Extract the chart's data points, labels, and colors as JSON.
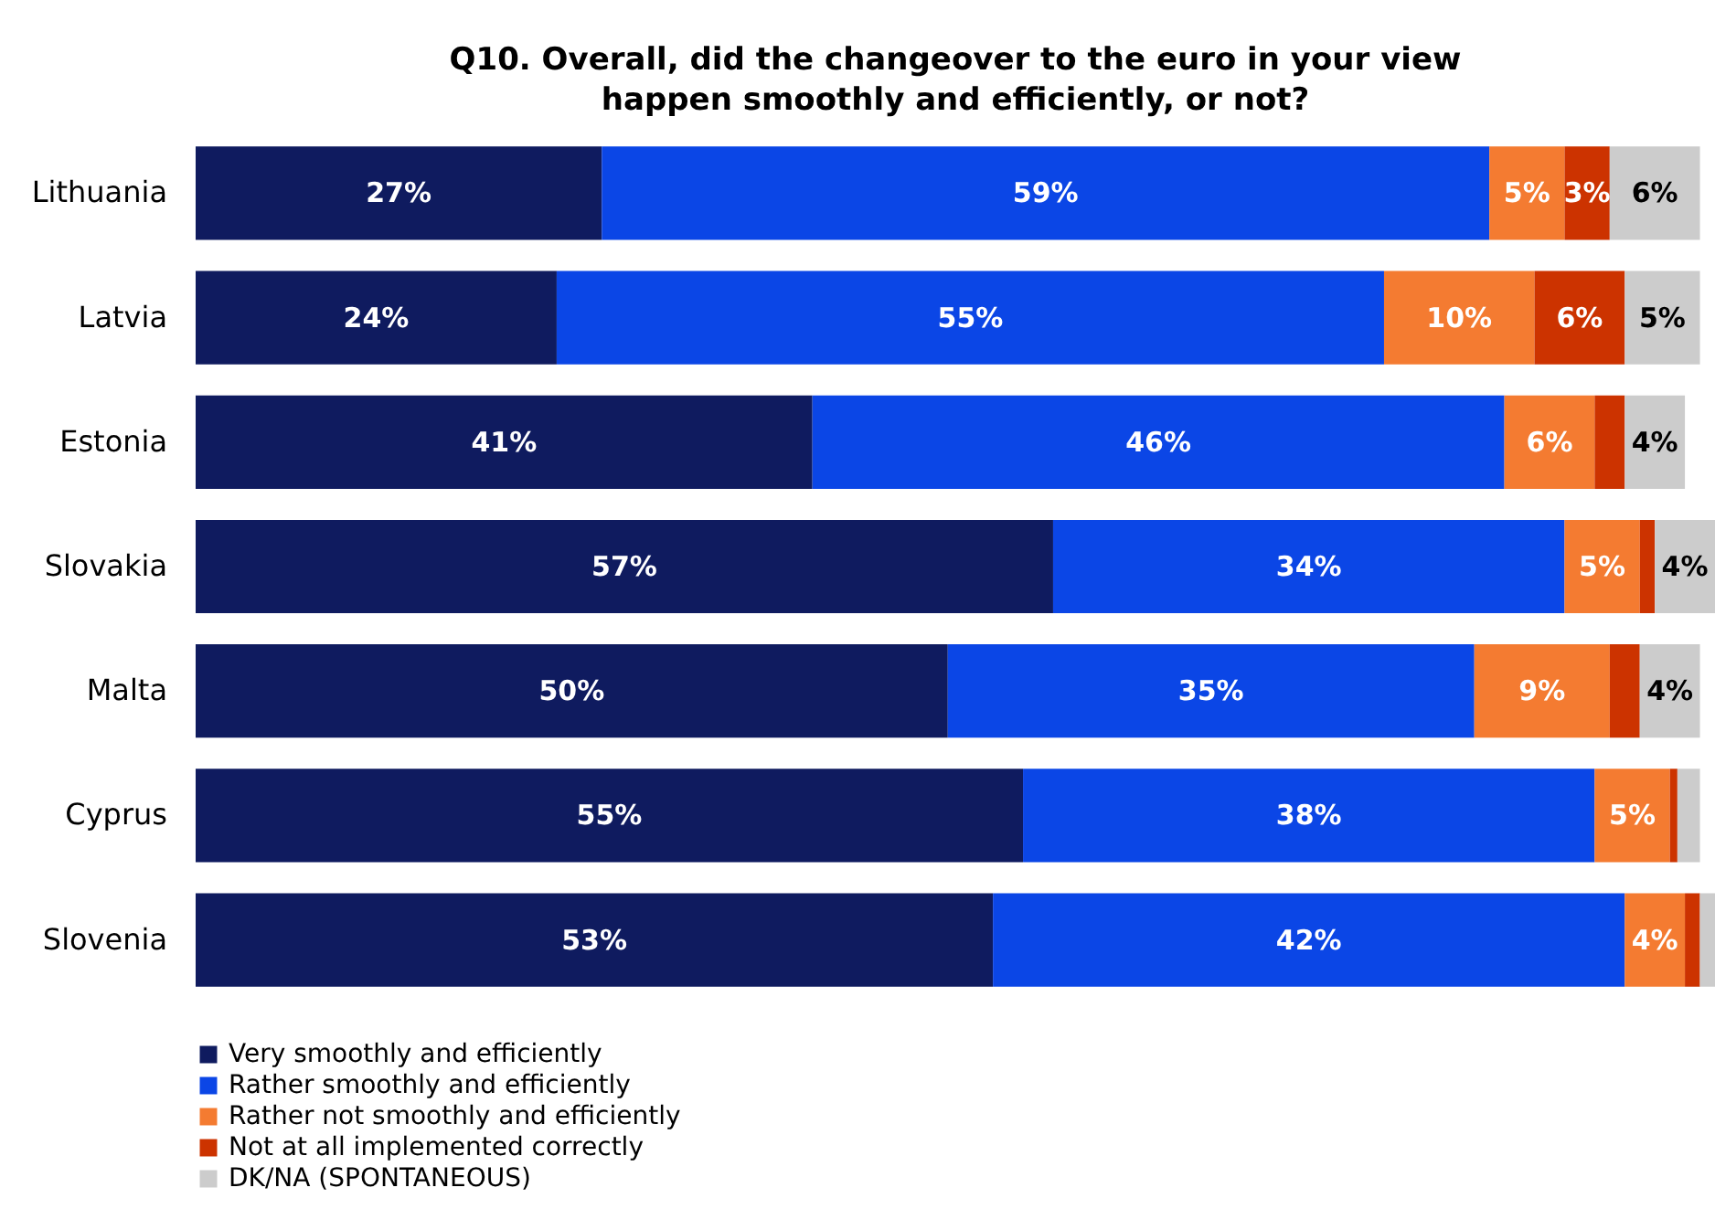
{
  "chart_data": {
    "type": "bar",
    "orientation": "horizontal",
    "stacked": true,
    "title": "Q10. Overall, did the changeover to the euro in your view happen smoothly and efficiently, or not?",
    "categories": [
      "Lithuania",
      "Latvia",
      "Estonia",
      "Slovakia",
      "Malta",
      "Cyprus",
      "Slovenia"
    ],
    "legend": "bottom left",
    "series": [
      {
        "name": "Very smoothly and efficiently",
        "color": "#0f1b5f",
        "values": [
          27,
          24,
          41,
          57,
          50,
          55,
          53
        ],
        "value_labels": [
          "27%",
          "24%",
          "41%",
          "57%",
          "50%",
          "55%",
          "53%"
        ]
      },
      {
        "name": "Rather smoothly and efficiently",
        "color": "#0b46e6",
        "values": [
          59,
          55,
          46,
          34,
          35,
          38,
          42
        ],
        "value_labels": [
          "59%",
          "55%",
          "46%",
          "34%",
          "35%",
          "38%",
          "42%"
        ]
      },
      {
        "name": "Rather not smoothly and efficiently",
        "color": "#f47b31",
        "values": [
          5,
          10,
          6,
          5,
          9,
          5,
          4
        ],
        "value_labels": [
          "5%",
          "10%",
          "6%",
          "5%",
          "9%",
          "5%",
          "4%"
        ]
      },
      {
        "name": "Not at all implemented correctly",
        "color": "#cc3300",
        "values": [
          3,
          6,
          2,
          1,
          2,
          0.5,
          1
        ],
        "value_labels": [
          "3%",
          "6%",
          null,
          null,
          null,
          null,
          null
        ]
      },
      {
        "name": "DK/NA (SPONTANEOUS)",
        "color": "#cccccc",
        "values": [
          6,
          5,
          4,
          4,
          4,
          1.5,
          1
        ],
        "value_labels": [
          "6%",
          "5%",
          "4%",
          "4%",
          "4%",
          null,
          null
        ]
      }
    ]
  }
}
